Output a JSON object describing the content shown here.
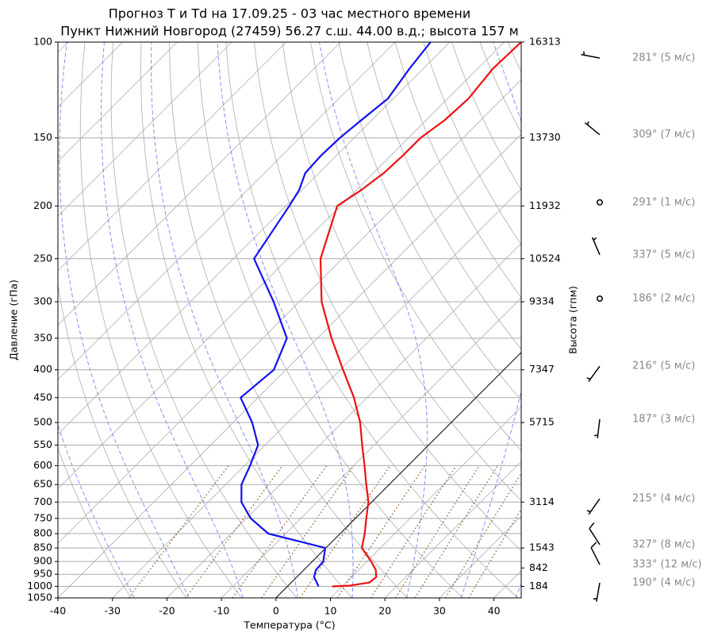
{
  "chart_data": {
    "type": "skewt",
    "title": "Прогноз T и Td на 17.09.25 - 03 час местного времени",
    "subtitle": "Пункт Нижний Новгород (27459) 56.27 с.ш. 44.00 в.д.; высота 157 м",
    "x_label": "Температура (°C)",
    "y_label": "Давление (гПа)",
    "y2_label": "Высота (гпм)",
    "xlim": [
      -40,
      45
    ],
    "xticks": [
      -40,
      -30,
      -20,
      -10,
      0,
      10,
      20,
      30,
      40
    ],
    "ylim": [
      1050,
      100
    ],
    "log_y": true,
    "grid": true,
    "yticks": [
      100,
      150,
      200,
      250,
      300,
      350,
      400,
      450,
      500,
      550,
      600,
      650,
      700,
      750,
      800,
      850,
      900,
      950,
      1000,
      1050
    ],
    "pressure": [
      1000,
      997,
      984,
      962,
      933,
      900,
      850,
      800,
      750,
      700,
      650,
      600,
      550,
      500,
      450,
      400,
      350,
      300,
      250,
      200,
      187,
      174,
      162,
      150,
      139,
      127,
      112,
      100
    ],
    "series": [
      {
        "color": "#ee1111",
        "values": [
          8.2,
          11.2,
          14.3,
          14.6,
          13.2,
          10.8,
          6.6,
          4.5,
          2.0,
          -0.6,
          -4.2,
          -8.0,
          -12.2,
          -16.7,
          -22.4,
          -29.5,
          -37.4,
          -45.9,
          -54.0,
          -60.6,
          -59.1,
          -58.1,
          -57.8,
          -57.8,
          -56.6,
          -56.2,
          -57.2,
          -56.9
        ]
      },
      {
        "color": "#1111ee",
        "values": [
          5.7,
          5.5,
          4.7,
          3.2,
          2.2,
          2.0,
          -0.1,
          -13.2,
          -19.2,
          -23.9,
          -27.1,
          -29.0,
          -31.3,
          -36.5,
          -43.2,
          -42.2,
          -45.6,
          -54.7,
          -66.2,
          -69.4,
          -70.5,
          -72.5,
          -72.8,
          -72.6,
          -71.9,
          -71.0,
          -72.5,
          -73.5
        ]
      }
    ],
    "height_ticks": [
      {
        "pressure": 100,
        "height": 16313
      },
      {
        "pressure": 150,
        "height": 13730
      },
      {
        "pressure": 200,
        "height": 11932
      },
      {
        "pressure": 250,
        "height": 10524
      },
      {
        "pressure": 300,
        "height": 9334
      },
      {
        "pressure": 400,
        "height": 7347
      },
      {
        "pressure": 500,
        "height": 5715
      },
      {
        "pressure": 700,
        "height": 3114
      },
      {
        "pressure": 850,
        "height": 1543
      },
      {
        "pressure": 925,
        "height": 842
      },
      {
        "pressure": 1000,
        "height": 184
      }
    ],
    "winds": [
      {
        "pressure": 107,
        "direction": 281,
        "speed": 5,
        "label": "281° (5 м/с)"
      },
      {
        "pressure": 148,
        "direction": 309,
        "speed": 7,
        "label": "309° (7 м/с)"
      },
      {
        "pressure": 197,
        "direction": 291,
        "speed": 1,
        "label": "291° (1 м/с)"
      },
      {
        "pressure": 246,
        "direction": 337,
        "speed": 5,
        "label": "337° (5 м/с)"
      },
      {
        "pressure": 296,
        "direction": 186,
        "speed": 2,
        "label": "186° (2 м/с)"
      },
      {
        "pressure": 394,
        "direction": 216,
        "speed": 5,
        "label": "216° (5 м/с)"
      },
      {
        "pressure": 493,
        "direction": 187,
        "speed": 3,
        "label": "187° (3 м/с)"
      },
      {
        "pressure": 690,
        "direction": 215,
        "speed": 4,
        "label": "215° (4 м/с)"
      },
      {
        "pressure": 838,
        "direction": 327,
        "speed": 8,
        "label": "327° (8 м/с)"
      },
      {
        "pressure": 912,
        "direction": 333,
        "speed": 12,
        "label": "333° (12 м/с)"
      },
      {
        "pressure": 985,
        "direction": 190,
        "speed": 4,
        "label": "190° (4 м/с)"
      }
    ]
  }
}
